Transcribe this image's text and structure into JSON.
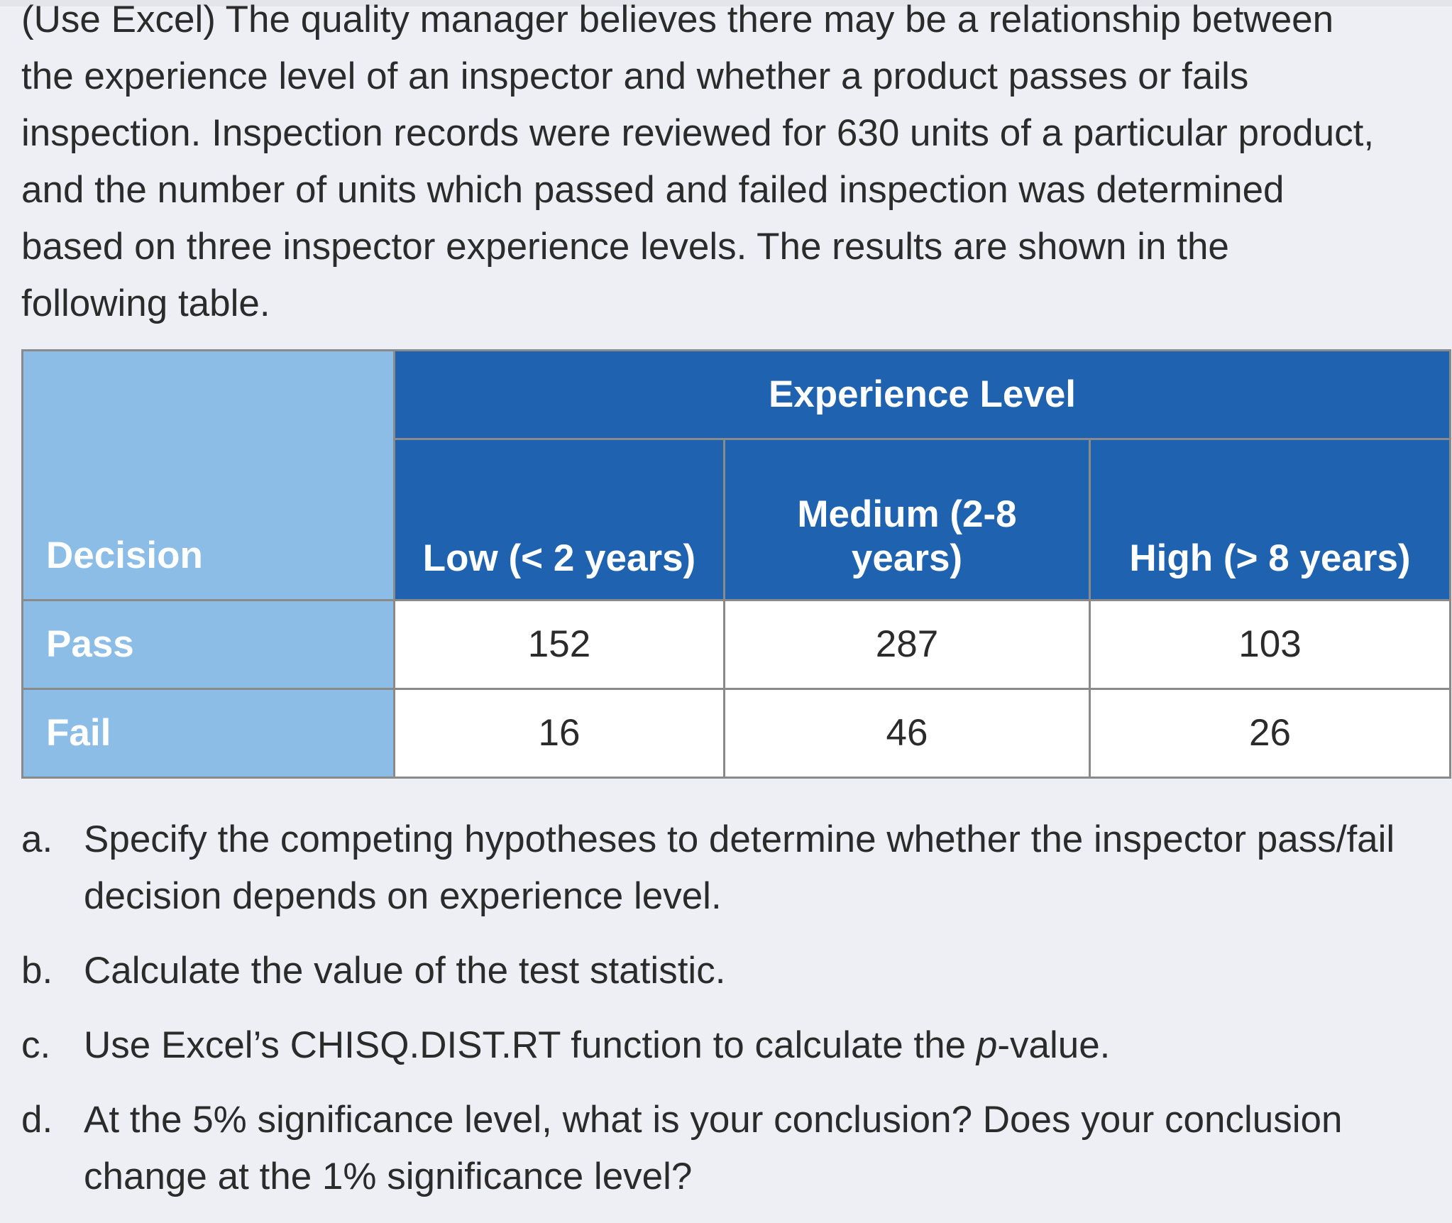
{
  "intro": {
    "lines": [
      "(Use Excel) The quality manager believes there may be a relationship between",
      "the experience level of an inspector and whether a product passes or fails",
      "inspection. Inspection records were reviewed for 630 units of a particular product,",
      "and the number of units which passed and failed inspection was determined",
      "based on three inspector experience levels. The results are shown in the",
      "following table."
    ]
  },
  "table": {
    "row_header": "Decision",
    "group_header": "Experience Level",
    "columns": [
      {
        "line1": "Low (< 2 years)",
        "line2": ""
      },
      {
        "line1": "Medium (2-8",
        "line2": "years)"
      },
      {
        "line1": "High (> 8 years)",
        "line2": ""
      }
    ],
    "rows": [
      {
        "label": "Pass",
        "values": [
          "152",
          "287",
          "103"
        ]
      },
      {
        "label": "Fail",
        "values": [
          "16",
          "46",
          "26"
        ]
      }
    ]
  },
  "questions": [
    {
      "marker": "a.",
      "text": "Specify the competing hypotheses to determine whether the inspector pass/fail decision depends on experience level."
    },
    {
      "marker": "b.",
      "text": "Calculate the value of the test statistic."
    },
    {
      "marker": "c.",
      "text_before": "Use Excel’s CHISQ.DIST.RT function to calculate the ",
      "text_italic": "p",
      "text_after": "-value."
    },
    {
      "marker": "d.",
      "text": "At the 5% significance level, what is your conclusion? Does your conclusion change at the 1% significance level?"
    }
  ]
}
